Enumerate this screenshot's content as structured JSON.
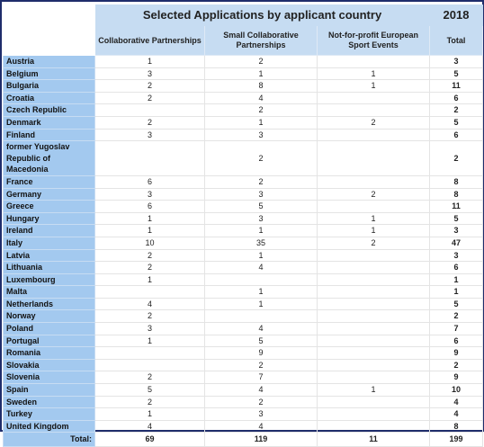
{
  "title": "Selected Applications by applicant country",
  "year": "2018",
  "headers": [
    "Collaborative Partnerships",
    "Small Collaborative Partnerships",
    "Not-for-profit European Sport Events",
    "Total"
  ],
  "rows": [
    [
      "Austria",
      1,
      2,
      null,
      3
    ],
    [
      "Belgium",
      3,
      1,
      1,
      5
    ],
    [
      "Bulgaria",
      2,
      8,
      1,
      11
    ],
    [
      "Croatia",
      2,
      4,
      null,
      6
    ],
    [
      "Czech Republic",
      null,
      2,
      null,
      2
    ],
    [
      "Denmark",
      2,
      1,
      2,
      5
    ],
    [
      "Finland",
      3,
      3,
      null,
      6
    ],
    [
      "former Yugoslav Republic of Macedonia",
      null,
      2,
      null,
      2
    ],
    [
      "France",
      6,
      2,
      null,
      8
    ],
    [
      "Germany",
      3,
      3,
      2,
      8
    ],
    [
      "Greece",
      6,
      5,
      null,
      11
    ],
    [
      "Hungary",
      1,
      3,
      1,
      5
    ],
    [
      "Ireland",
      1,
      1,
      1,
      3
    ],
    [
      "Italy",
      10,
      35,
      2,
      47
    ],
    [
      "Latvia",
      2,
      1,
      null,
      3
    ],
    [
      "Lithuania",
      2,
      4,
      null,
      6
    ],
    [
      "Luxembourg",
      1,
      null,
      null,
      1
    ],
    [
      "Malta",
      null,
      1,
      null,
      1
    ],
    [
      "Netherlands",
      4,
      1,
      null,
      5
    ],
    [
      "Norway",
      2,
      null,
      null,
      2
    ],
    [
      "Poland",
      3,
      4,
      null,
      7
    ],
    [
      "Portugal",
      1,
      5,
      null,
      6
    ],
    [
      "Romania",
      null,
      9,
      null,
      9
    ],
    [
      "Slovakia",
      null,
      2,
      null,
      2
    ],
    [
      "Slovenia",
      2,
      7,
      null,
      9
    ],
    [
      "Spain",
      5,
      4,
      1,
      10
    ],
    [
      "Sweden",
      2,
      2,
      null,
      4
    ],
    [
      "Turkey",
      1,
      3,
      null,
      4
    ],
    [
      "United Kingdom",
      4,
      4,
      null,
      8
    ]
  ],
  "total": [
    "Total:",
    69,
    119,
    11,
    199
  ]
}
